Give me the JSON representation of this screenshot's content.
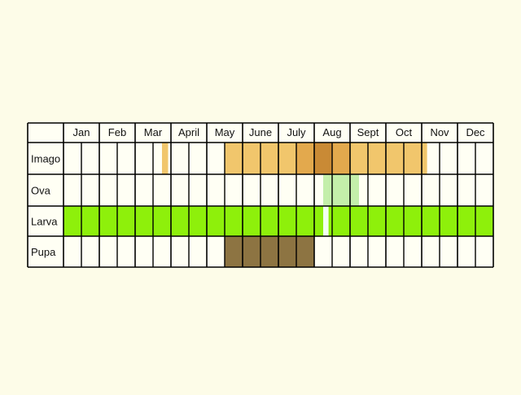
{
  "colors": {
    "background": "#fdfce8",
    "cell": "#fffff4",
    "grid": "#000000",
    "imago_light": "#f1c66c",
    "imago_mid": "#e3a94d",
    "imago_dark": "#c98a35",
    "ova": "#c4efaa",
    "larva": "#8ef00b",
    "larva_gap": "#f2fff0",
    "pupa": "#8d7442"
  },
  "calendar": {
    "months": [
      "Jan",
      "Feb",
      "Mar",
      "April",
      "May",
      "June",
      "July",
      "Aug",
      "Sept",
      "Oct",
      "Nov",
      "Dec"
    ],
    "subdivisions_per_month": 2,
    "rows": [
      {
        "label": "Imago",
        "bands": [
          {
            "from": 2.75,
            "to": 2.92,
            "color": "imago_light"
          },
          {
            "from": 4.5,
            "to": 6.5,
            "color": "imago_light"
          },
          {
            "from": 6.5,
            "to": 7.0,
            "color": "imago_mid"
          },
          {
            "from": 7.0,
            "to": 7.5,
            "color": "imago_dark"
          },
          {
            "from": 7.5,
            "to": 8.0,
            "color": "imago_mid"
          },
          {
            "from": 8.0,
            "to": 10.0,
            "color": "imago_light"
          },
          {
            "from": 10.0,
            "to": 10.15,
            "color": "imago_light"
          }
        ]
      },
      {
        "label": "Ova",
        "bands": [
          {
            "from": 7.25,
            "to": 8.25,
            "color": "ova"
          }
        ]
      },
      {
        "label": "Larva",
        "bands": [
          {
            "from": 0.0,
            "to": 7.25,
            "color": "larva"
          },
          {
            "from": 7.25,
            "to": 7.4,
            "color": "larva_gap"
          },
          {
            "from": 7.4,
            "to": 12.0,
            "color": "larva"
          }
        ]
      },
      {
        "label": "Pupa",
        "bands": [
          {
            "from": 4.5,
            "to": 7.0,
            "color": "pupa"
          }
        ]
      }
    ]
  }
}
